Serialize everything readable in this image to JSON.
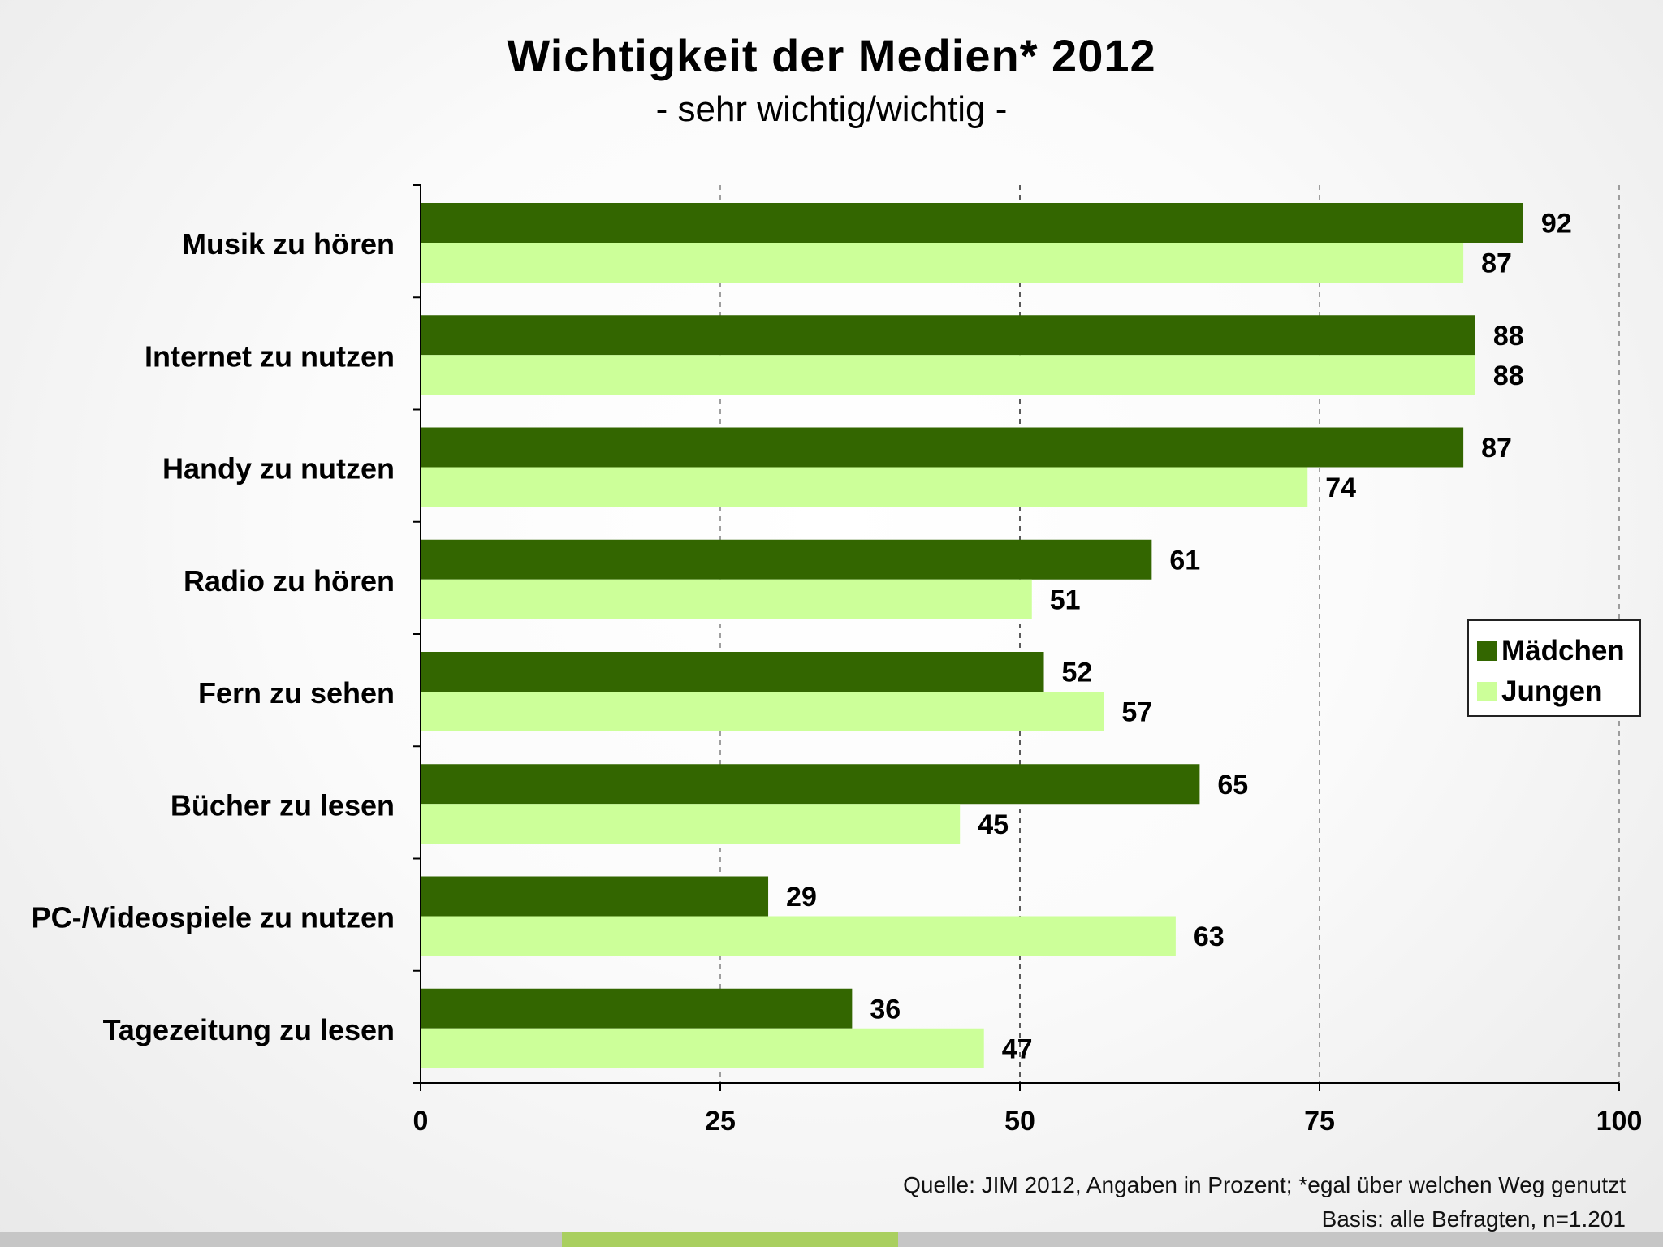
{
  "colors": {
    "maedchen": "#336600",
    "jungen": "#ccff99",
    "accent": "#a9cf5f"
  },
  "footer": {
    "source": "Quelle: JIM 2012, Angaben in Prozent; *egal über welchen Weg genutzt",
    "basis": "Basis: alle Befragten, n=1.201"
  },
  "chart_data": {
    "type": "bar",
    "orientation": "horizontal",
    "title": "Wichtigkeit der Medien* 2012",
    "subtitle": "- sehr wichtig/wichtig -",
    "categories": [
      "Musik zu hören",
      "Internet zu nutzen",
      "Handy zu nutzen",
      "Radio zu hören",
      "Fern zu sehen",
      "Bücher zu lesen",
      "PC-/Videospiele zu nutzen",
      "Tagezeitung zu lesen"
    ],
    "series": [
      {
        "name": "Mädchen",
        "values": [
          92,
          88,
          87,
          61,
          52,
          65,
          29,
          36
        ]
      },
      {
        "name": "Jungen",
        "values": [
          87,
          88,
          74,
          51,
          57,
          45,
          63,
          47
        ]
      }
    ],
    "xlim": [
      0,
      100
    ],
    "xticks": [
      0,
      25,
      50,
      75,
      100
    ],
    "grid": true,
    "legend": "right"
  }
}
